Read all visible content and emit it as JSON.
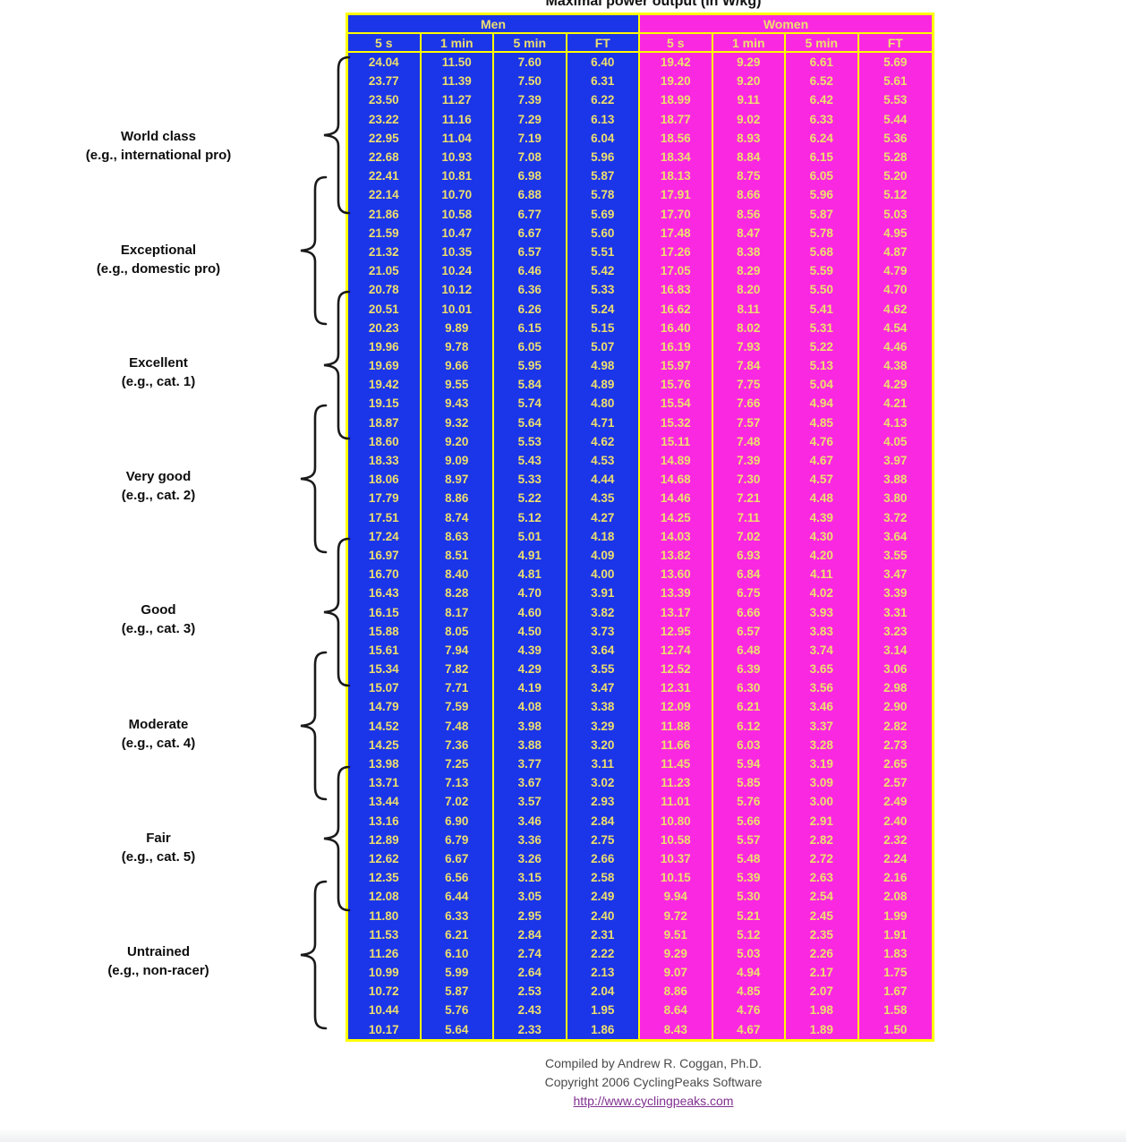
{
  "title": "Maximal power output (in W/kg)",
  "chart_data": {
    "type": "table",
    "title": "Maximal power output (in W/kg)",
    "unit": "W/kg",
    "column_groups": [
      "Men",
      "Women"
    ],
    "columns": [
      "5 s",
      "1 min",
      "5 min",
      "FT"
    ],
    "rows": [
      [
        24.04,
        11.5,
        7.6,
        6.4,
        19.42,
        9.29,
        6.61,
        5.69
      ],
      [
        23.77,
        11.39,
        7.5,
        6.31,
        19.2,
        9.2,
        6.52,
        5.61
      ],
      [
        23.5,
        11.27,
        7.39,
        6.22,
        18.99,
        9.11,
        6.42,
        5.53
      ],
      [
        23.22,
        11.16,
        7.29,
        6.13,
        18.77,
        9.02,
        6.33,
        5.44
      ],
      [
        22.95,
        11.04,
        7.19,
        6.04,
        18.56,
        8.93,
        6.24,
        5.36
      ],
      [
        22.68,
        10.93,
        7.08,
        5.96,
        18.34,
        8.84,
        6.15,
        5.28
      ],
      [
        22.41,
        10.81,
        6.98,
        5.87,
        18.13,
        8.75,
        6.05,
        5.2
      ],
      [
        22.14,
        10.7,
        6.88,
        5.78,
        17.91,
        8.66,
        5.96,
        5.12
      ],
      [
        21.86,
        10.58,
        6.77,
        5.69,
        17.7,
        8.56,
        5.87,
        5.03
      ],
      [
        21.59,
        10.47,
        6.67,
        5.6,
        17.48,
        8.47,
        5.78,
        4.95
      ],
      [
        21.32,
        10.35,
        6.57,
        5.51,
        17.26,
        8.38,
        5.68,
        4.87
      ],
      [
        21.05,
        10.24,
        6.46,
        5.42,
        17.05,
        8.29,
        5.59,
        4.79
      ],
      [
        20.78,
        10.12,
        6.36,
        5.33,
        16.83,
        8.2,
        5.5,
        4.7
      ],
      [
        20.51,
        10.01,
        6.26,
        5.24,
        16.62,
        8.11,
        5.41,
        4.62
      ],
      [
        20.23,
        9.89,
        6.15,
        5.15,
        16.4,
        8.02,
        5.31,
        4.54
      ],
      [
        19.96,
        9.78,
        6.05,
        5.07,
        16.19,
        7.93,
        5.22,
        4.46
      ],
      [
        19.69,
        9.66,
        5.95,
        4.98,
        15.97,
        7.84,
        5.13,
        4.38
      ],
      [
        19.42,
        9.55,
        5.84,
        4.89,
        15.76,
        7.75,
        5.04,
        4.29
      ],
      [
        19.15,
        9.43,
        5.74,
        4.8,
        15.54,
        7.66,
        4.94,
        4.21
      ],
      [
        18.87,
        9.32,
        5.64,
        4.71,
        15.32,
        7.57,
        4.85,
        4.13
      ],
      [
        18.6,
        9.2,
        5.53,
        4.62,
        15.11,
        7.48,
        4.76,
        4.05
      ],
      [
        18.33,
        9.09,
        5.43,
        4.53,
        14.89,
        7.39,
        4.67,
        3.97
      ],
      [
        18.06,
        8.97,
        5.33,
        4.44,
        14.68,
        7.3,
        4.57,
        3.88
      ],
      [
        17.79,
        8.86,
        5.22,
        4.35,
        14.46,
        7.21,
        4.48,
        3.8
      ],
      [
        17.51,
        8.74,
        5.12,
        4.27,
        14.25,
        7.11,
        4.39,
        3.72
      ],
      [
        17.24,
        8.63,
        5.01,
        4.18,
        14.03,
        7.02,
        4.3,
        3.64
      ],
      [
        16.97,
        8.51,
        4.91,
        4.09,
        13.82,
        6.93,
        4.2,
        3.55
      ],
      [
        16.7,
        8.4,
        4.81,
        4.0,
        13.6,
        6.84,
        4.11,
        3.47
      ],
      [
        16.43,
        8.28,
        4.7,
        3.91,
        13.39,
        6.75,
        4.02,
        3.39
      ],
      [
        16.15,
        8.17,
        4.6,
        3.82,
        13.17,
        6.66,
        3.93,
        3.31
      ],
      [
        15.88,
        8.05,
        4.5,
        3.73,
        12.95,
        6.57,
        3.83,
        3.23
      ],
      [
        15.61,
        7.94,
        4.39,
        3.64,
        12.74,
        6.48,
        3.74,
        3.14
      ],
      [
        15.34,
        7.82,
        4.29,
        3.55,
        12.52,
        6.39,
        3.65,
        3.06
      ],
      [
        15.07,
        7.71,
        4.19,
        3.47,
        12.31,
        6.3,
        3.56,
        2.98
      ],
      [
        14.79,
        7.59,
        4.08,
        3.38,
        12.09,
        6.21,
        3.46,
        2.9
      ],
      [
        14.52,
        7.48,
        3.98,
        3.29,
        11.88,
        6.12,
        3.37,
        2.82
      ],
      [
        14.25,
        7.36,
        3.88,
        3.2,
        11.66,
        6.03,
        3.28,
        2.73
      ],
      [
        13.98,
        7.25,
        3.77,
        3.11,
        11.45,
        5.94,
        3.19,
        2.65
      ],
      [
        13.71,
        7.13,
        3.67,
        3.02,
        11.23,
        5.85,
        3.09,
        2.57
      ],
      [
        13.44,
        7.02,
        3.57,
        2.93,
        11.01,
        5.76,
        3.0,
        2.49
      ],
      [
        13.16,
        6.9,
        3.46,
        2.84,
        10.8,
        5.66,
        2.91,
        2.4
      ],
      [
        12.89,
        6.79,
        3.36,
        2.75,
        10.58,
        5.57,
        2.82,
        2.32
      ],
      [
        12.62,
        6.67,
        3.26,
        2.66,
        10.37,
        5.48,
        2.72,
        2.24
      ],
      [
        12.35,
        6.56,
        3.15,
        2.58,
        10.15,
        5.39,
        2.63,
        2.16
      ],
      [
        12.08,
        6.44,
        3.05,
        2.49,
        9.94,
        5.3,
        2.54,
        2.08
      ],
      [
        11.8,
        6.33,
        2.95,
        2.4,
        9.72,
        5.21,
        2.45,
        1.99
      ],
      [
        11.53,
        6.21,
        2.84,
        2.31,
        9.51,
        5.12,
        2.35,
        1.91
      ],
      [
        11.26,
        6.1,
        2.74,
        2.22,
        9.29,
        5.03,
        2.26,
        1.83
      ],
      [
        10.99,
        5.99,
        2.64,
        2.13,
        9.07,
        4.94,
        2.17,
        1.75
      ],
      [
        10.72,
        5.87,
        2.53,
        2.04,
        8.86,
        4.85,
        2.07,
        1.67
      ],
      [
        10.44,
        5.76,
        2.43,
        1.95,
        8.64,
        4.76,
        1.98,
        1.58
      ],
      [
        10.17,
        5.64,
        2.33,
        1.86,
        8.43,
        4.67,
        1.89,
        1.5
      ]
    ],
    "row_categories": [
      {
        "name": "World class",
        "example": "(e.g., international pro)",
        "rows": [
          1,
          8
        ]
      },
      {
        "name": "Exceptional",
        "example": "(e.g., domestic pro)",
        "rows": [
          7,
          14
        ]
      },
      {
        "name": "Excellent",
        "example": "(e.g., cat. 1)",
        "rows": [
          13,
          20
        ]
      },
      {
        "name": "Very good",
        "example": "(e.g., cat. 2)",
        "rows": [
          19,
          26
        ]
      },
      {
        "name": "Good",
        "example": "(e.g., cat. 3)",
        "rows": [
          26,
          33
        ]
      },
      {
        "name": "Moderate",
        "example": "(e.g., cat. 4)",
        "rows": [
          32,
          39
        ]
      },
      {
        "name": "Fair",
        "example": "(e.g., cat. 5)",
        "rows": [
          38,
          45
        ]
      },
      {
        "name": "Untrained",
        "example": "(e.g., non-racer)",
        "rows": [
          44,
          52
        ]
      }
    ]
  },
  "footer": {
    "line1": "Compiled by Andrew R. Coggan, Ph.D.",
    "line2": "Copyright 2006 CyclingPeaks Software",
    "link": "http://www.cyclingpeaks.com"
  },
  "colors": {
    "men": "#1B35E8",
    "women": "#FA28E1",
    "grid": "#FFFF00",
    "cell_text": "#EDDF6F",
    "link": "#803090"
  }
}
